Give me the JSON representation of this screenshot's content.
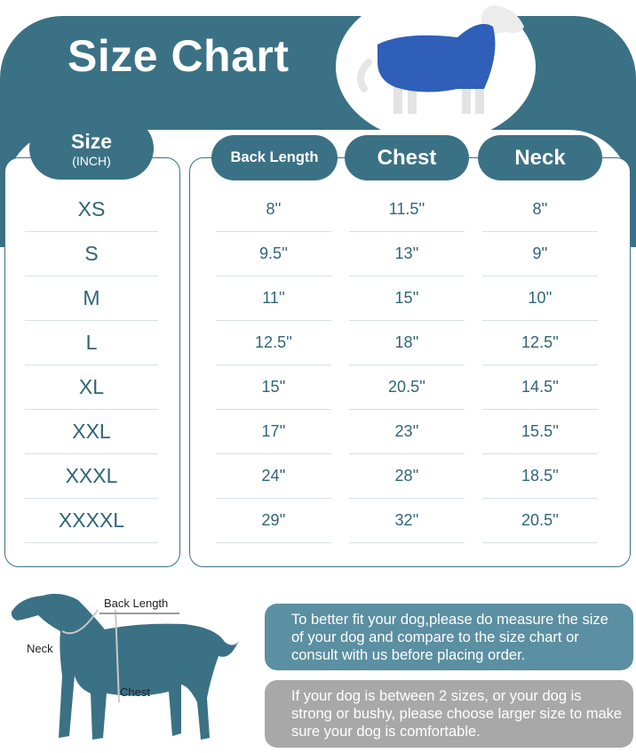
{
  "title": "Size Chart",
  "headers": {
    "size": "Size",
    "unit": "(INCH)",
    "back": "Back Length",
    "chest": "Chest",
    "neck": "Neck"
  },
  "rows": [
    {
      "size": "XS",
      "back": "8''",
      "chest": "11.5''",
      "neck": "8''"
    },
    {
      "size": "S",
      "back": "9.5''",
      "chest": "13''",
      "neck": "9''"
    },
    {
      "size": "M",
      "back": "11''",
      "chest": "15''",
      "neck": "10''"
    },
    {
      "size": "L",
      "back": "12.5''",
      "chest": "18''",
      "neck": "12.5''"
    },
    {
      "size": "XL",
      "back": "15''",
      "chest": "20.5''",
      "neck": "14.5''"
    },
    {
      "size": "XXL",
      "back": "17''",
      "chest": "23''",
      "neck": "15.5''"
    },
    {
      "size": "XXXL",
      "back": "24''",
      "chest": "28''",
      "neck": "18.5''"
    },
    {
      "size": "XXXXL",
      "back": "29''",
      "chest": "32''",
      "neck": "20.5''"
    }
  ],
  "diagram": {
    "back": "Back  Length",
    "neck": "Neck",
    "chest": "Chest"
  },
  "notes": [
    "To better fit your dog,please do measure the size of your dog and compare to the size chart or consult with us before placing order.",
    "If your dog is between 2 sizes, or your dog is strong or bushy, please choose larger size to make sure your dog is comfortable."
  ],
  "colors": {
    "primary": "#3b7185",
    "note1": "#5b8fa2",
    "note2": "#a8a8a8",
    "shirt": "#2f5fb8"
  }
}
